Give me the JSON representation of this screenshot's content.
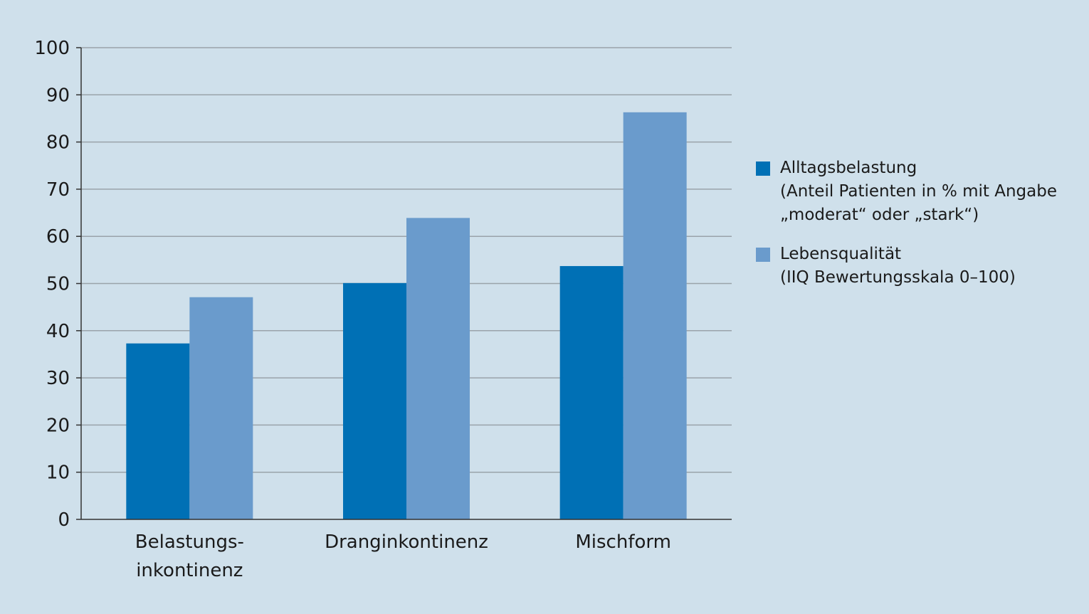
{
  "chart_data": {
    "type": "bar",
    "categories": [
      [
        "Belastungs-",
        "inkontinenz"
      ],
      [
        "Dranginkontinenz"
      ],
      [
        "Mischform"
      ]
    ],
    "series": [
      {
        "name": "Alltagsbelastung",
        "description": [
          "(Anteil Patienten in % mit Angabe",
          "„moderat“ oder „stark“)"
        ],
        "color": "#0070b5",
        "values": [
          37.3,
          50.1,
          53.7
        ]
      },
      {
        "name": "Lebensqualität",
        "description": [
          "(IIQ Bewertungsskala 0–100)"
        ],
        "color": "#6a9bcc",
        "values": [
          47.1,
          63.9,
          86.3
        ]
      }
    ],
    "ylim": [
      0,
      100
    ],
    "yticks": [
      "0",
      "10",
      "20",
      "30",
      "40",
      "50",
      "60",
      "70",
      "80",
      "90",
      "100"
    ],
    "grid": true,
    "legend_position": "right"
  }
}
